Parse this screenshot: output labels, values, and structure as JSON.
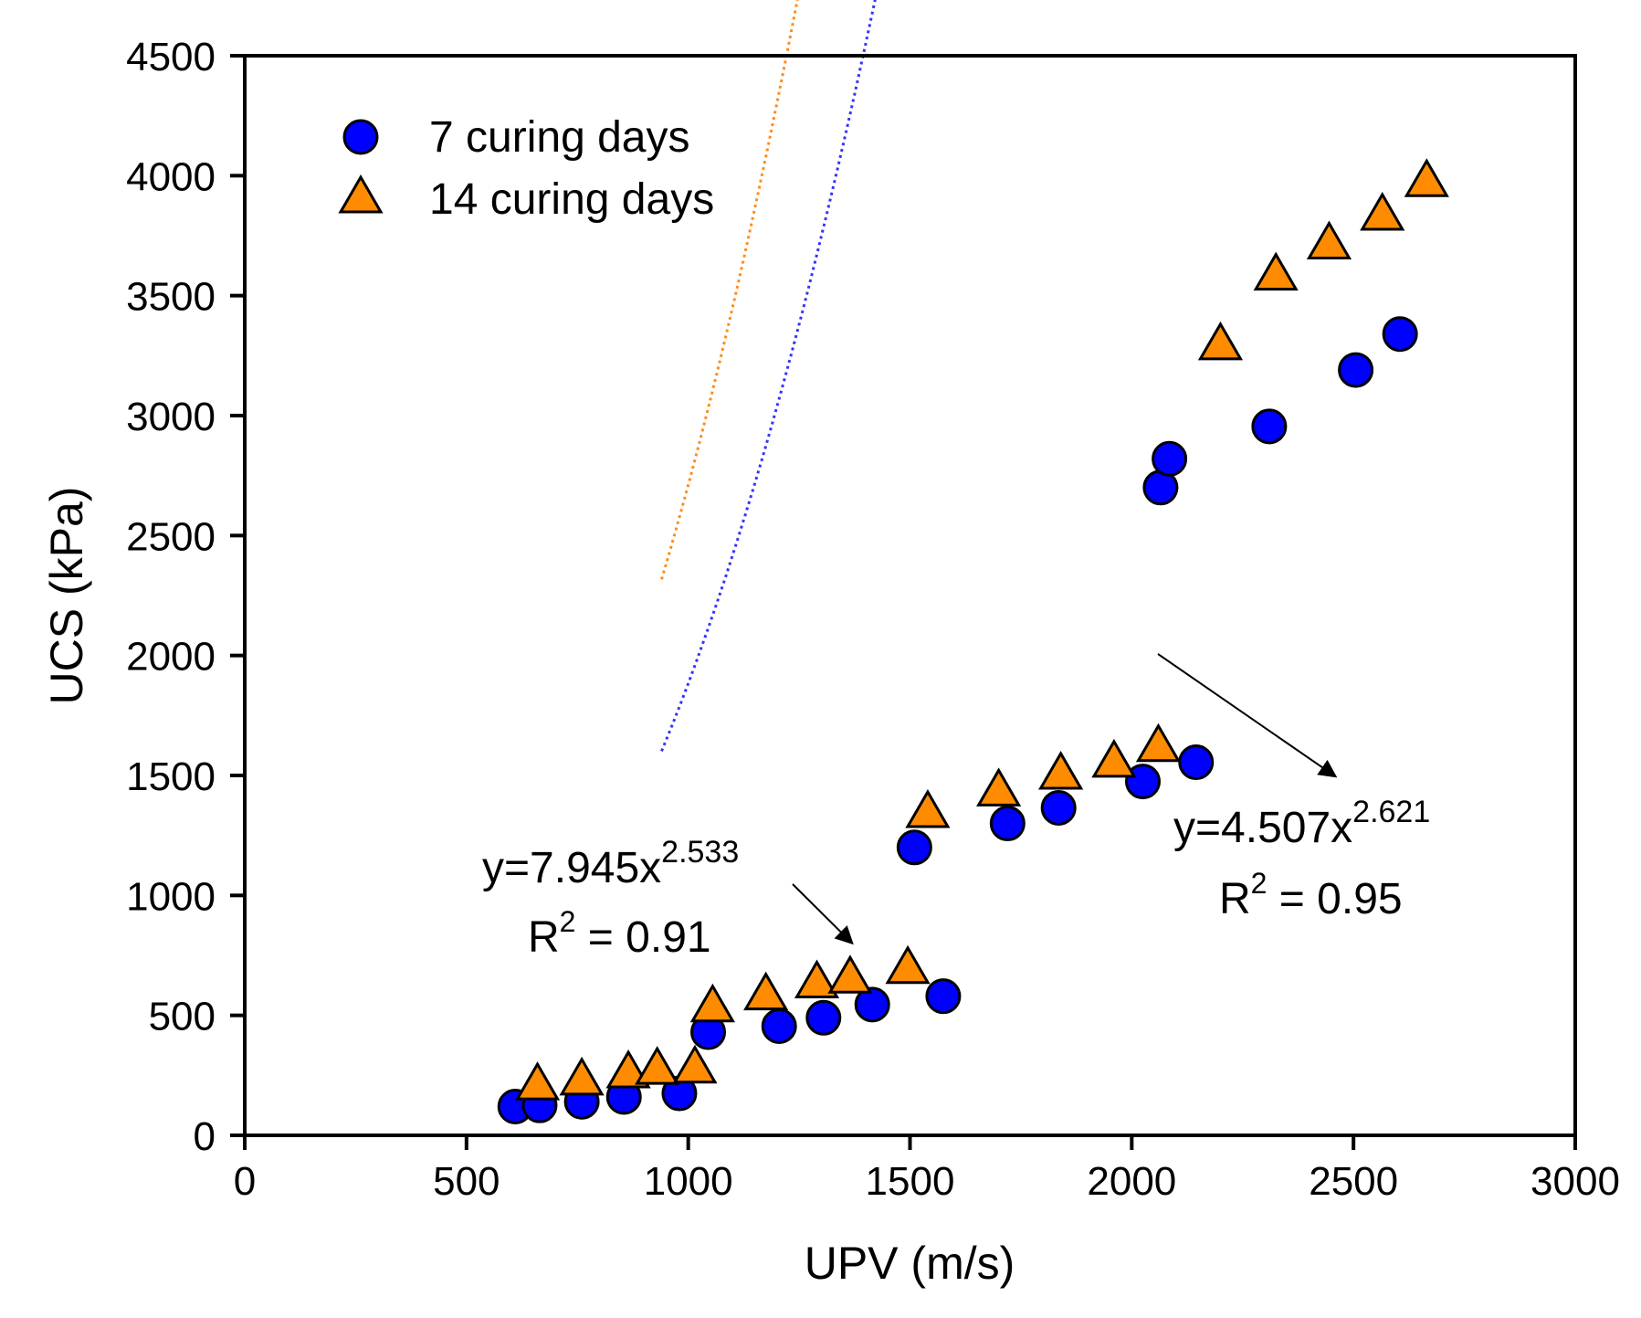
{
  "chart_data": {
    "type": "scatter",
    "title": "",
    "xlabel": "UPV (m/s)",
    "ylabel": "UCS (kPa)",
    "xlim": [
      0,
      3000
    ],
    "ylim": [
      0,
      4500
    ],
    "xticks": [
      0,
      500,
      1000,
      1500,
      2000,
      2500,
      3000
    ],
    "yticks": [
      0,
      500,
      1000,
      1500,
      2000,
      2500,
      3000,
      3500,
      4000,
      4500
    ],
    "legend_position": "top-left",
    "series": [
      {
        "name": "7 curing days",
        "marker": "circle",
        "color": "#0000ff",
        "points": [
          [
            610,
            120
          ],
          [
            665,
            125
          ],
          [
            760,
            140
          ],
          [
            855,
            160
          ],
          [
            980,
            175
          ],
          [
            1045,
            430
          ],
          [
            1205,
            455
          ],
          [
            1305,
            490
          ],
          [
            1415,
            545
          ],
          [
            1575,
            580
          ],
          [
            1510,
            1200
          ],
          [
            1720,
            1300
          ],
          [
            1835,
            1365
          ],
          [
            2025,
            1475
          ],
          [
            2145,
            1555
          ],
          [
            2065,
            2700
          ],
          [
            2085,
            2820
          ],
          [
            2310,
            2955
          ],
          [
            2505,
            3190
          ],
          [
            2605,
            3340
          ]
        ],
        "trendline": {
          "type": "power",
          "a": 4.507,
          "b": 2.621,
          "x_range": [
            940,
            2600
          ],
          "color": "#3333ff"
        }
      },
      {
        "name": "14 curing days",
        "marker": "triangle",
        "color": "#ff8c00",
        "points": [
          [
            660,
            205
          ],
          [
            760,
            225
          ],
          [
            865,
            255
          ],
          [
            930,
            270
          ],
          [
            1015,
            275
          ],
          [
            1055,
            530
          ],
          [
            1175,
            580
          ],
          [
            1290,
            630
          ],
          [
            1365,
            650
          ],
          [
            1495,
            690
          ],
          [
            1540,
            1340
          ],
          [
            1700,
            1430
          ],
          [
            1840,
            1500
          ],
          [
            1960,
            1550
          ],
          [
            2060,
            1615
          ],
          [
            2200,
            3290
          ],
          [
            2325,
            3580
          ],
          [
            2445,
            3710
          ],
          [
            2565,
            3830
          ],
          [
            2665,
            3970
          ]
        ],
        "trendline": {
          "type": "power",
          "a": 7.945,
          "b": 2.533,
          "x_range": [
            940,
            2660
          ],
          "color": "#ff8c1a"
        }
      }
    ],
    "annotations": [
      {
        "equation_prefix": "y=7.945x",
        "exponent": "2.533",
        "r2_label": "R",
        "r2_sup": "2",
        "r2_value": " = 0.91",
        "points_to": [
          1370,
          800
        ]
      },
      {
        "equation_prefix": "y=4.507x",
        "exponent": "2.621",
        "r2_label": "R",
        "r2_sup": "2",
        "r2_value": " = 0.95",
        "points_to": [
          2460,
          1495
        ]
      }
    ]
  }
}
